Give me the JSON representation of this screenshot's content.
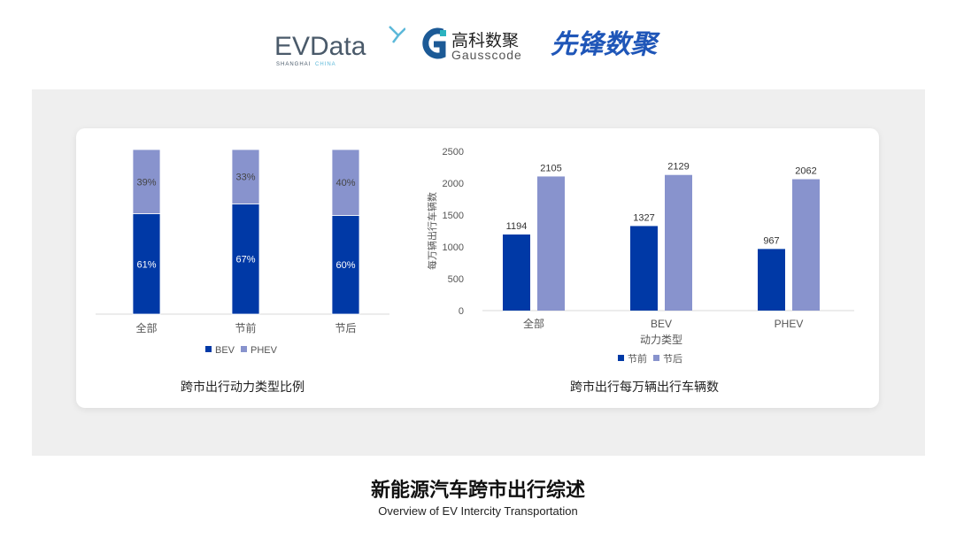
{
  "logos": {
    "evdata": {
      "main": "EVData",
      "sub_a": "SHANGHAI",
      "sub_b": "CHINA"
    },
    "gausscode": {
      "cn": "高科数聚",
      "en": "Gausscode"
    },
    "xianfeng": {
      "cn": "先锋数聚"
    }
  },
  "colors": {
    "bev": "#0039a6",
    "phev": "#8893cd",
    "panel": "#efefef",
    "axis": "#d9d9d9",
    "text": "#555555"
  },
  "chart_data": [
    {
      "type": "bar",
      "stacked": true,
      "percent": true,
      "title": "跨市出行动力类型比例",
      "categories": [
        "全部",
        "节前",
        "节后"
      ],
      "series": [
        {
          "name": "BEV",
          "values": [
            61,
            67,
            60
          ],
          "labels": [
            "61%",
            "67%",
            "60%"
          ]
        },
        {
          "name": "PHEV",
          "values": [
            39,
            33,
            40
          ],
          "labels": [
            "39%",
            "33%",
            "40%"
          ]
        }
      ],
      "ylim": [
        0,
        100
      ],
      "legend": "bottom",
      "grid": false
    },
    {
      "type": "bar",
      "title": "跨市出行每万辆出行车辆数",
      "xlabel": "动力类型",
      "ylabel": "每万辆出行车辆数",
      "categories": [
        "全部",
        "BEV",
        "PHEV"
      ],
      "series": [
        {
          "name": "节前",
          "values": [
            1194,
            1327,
            967
          ]
        },
        {
          "name": "节后",
          "values": [
            2105,
            2129,
            2062
          ]
        }
      ],
      "ylim": [
        0,
        2500
      ],
      "yticks": [
        0,
        500,
        1000,
        1500,
        2000,
        2500
      ],
      "legend": "bottom",
      "grid": false
    }
  ],
  "footer": {
    "title": "新能源汽车跨市出行综述",
    "subtitle": "Overview of EV Intercity Transportation"
  }
}
